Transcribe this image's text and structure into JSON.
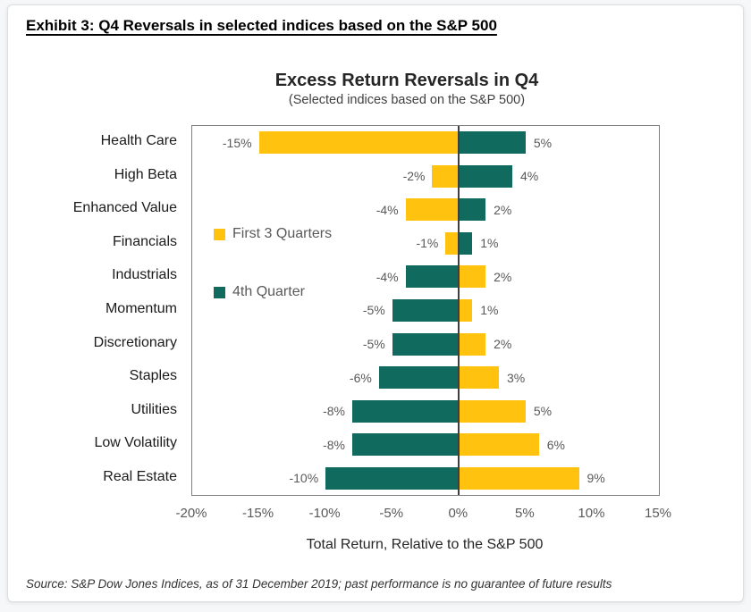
{
  "header": {
    "title": "Exhibit 3: Q4 Reversals in selected indices based on the S&P 500"
  },
  "chart": {
    "title": "Excess Return Reversals in Q4",
    "subtitle": "(Selected indices based on the S&P 500)",
    "xlabel": "Total Return, Relative to the S&P 500"
  },
  "legend": {
    "first3_label": "First 3 Quarters",
    "q4_label": "4th Quarter"
  },
  "footer": {
    "source": "Source: S&P Dow Jones Indices, as of 31 December 2019; past performance is no guarantee of future results"
  },
  "colors": {
    "first3": "#FFC20E",
    "q4": "#116A5E",
    "zero_line": "#3F3F3F",
    "plot_border": "#808080",
    "data_label": "#595959"
  },
  "chart_data": {
    "type": "bar",
    "orientation": "horizontal",
    "title": "Excess Return Reversals in Q4",
    "subtitle": "(Selected indices based on the S&P 500)",
    "xlabel": "Total Return, Relative to the S&P 500",
    "categories": [
      "Health Care",
      "High Beta",
      "Enhanced Value",
      "Financials",
      "Industrials",
      "Momentum",
      "Discretionary",
      "Staples",
      "Utilities",
      "Low Volatility",
      "Real Estate"
    ],
    "series": [
      {
        "name": "First 3 Quarters",
        "color": "#FFC20E",
        "values": [
          -15,
          -2,
          -4,
          -1,
          2,
          1,
          2,
          3,
          5,
          6,
          9
        ]
      },
      {
        "name": "4th Quarter",
        "color": "#116A5E",
        "values": [
          5,
          4,
          2,
          1,
          -4,
          -5,
          -5,
          -6,
          -8,
          -8,
          -10
        ]
      }
    ],
    "data_labels": [
      "-15%",
      "5%",
      "-2%",
      "4%",
      "-4%",
      "2%",
      "-1%",
      "1%",
      "-4%",
      "2%",
      "-5%",
      "1%",
      "-5%",
      "2%",
      "-6%",
      "3%",
      "-8%",
      "5%",
      "-8%",
      "6%",
      "-10%",
      "9%"
    ],
    "x_axis": {
      "min": -20,
      "max": 15,
      "step": 5,
      "ticks": [
        "-20%",
        "-15%",
        "-10%",
        "-5%",
        "0%",
        "5%",
        "10%",
        "15%"
      ],
      "tick_values": [
        -20,
        -15,
        -10,
        -5,
        0,
        5,
        10,
        15
      ]
    },
    "legend_position": "inside-left",
    "grid": false
  }
}
